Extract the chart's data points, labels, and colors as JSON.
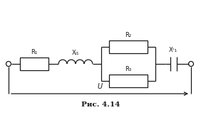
{
  "title": "Рис. 4.14",
  "label_R1": "R₁",
  "label_XL1": "Xₗ₁",
  "label_R2": "R₂",
  "label_R3": "R₃",
  "label_XC1": "Xᶜ₁",
  "label_U": "U",
  "bg_color": "#ffffff",
  "line_color": "#1a1a1a",
  "lw": 0.9,
  "figsize": [
    2.82,
    1.62
  ],
  "dpi": 100
}
